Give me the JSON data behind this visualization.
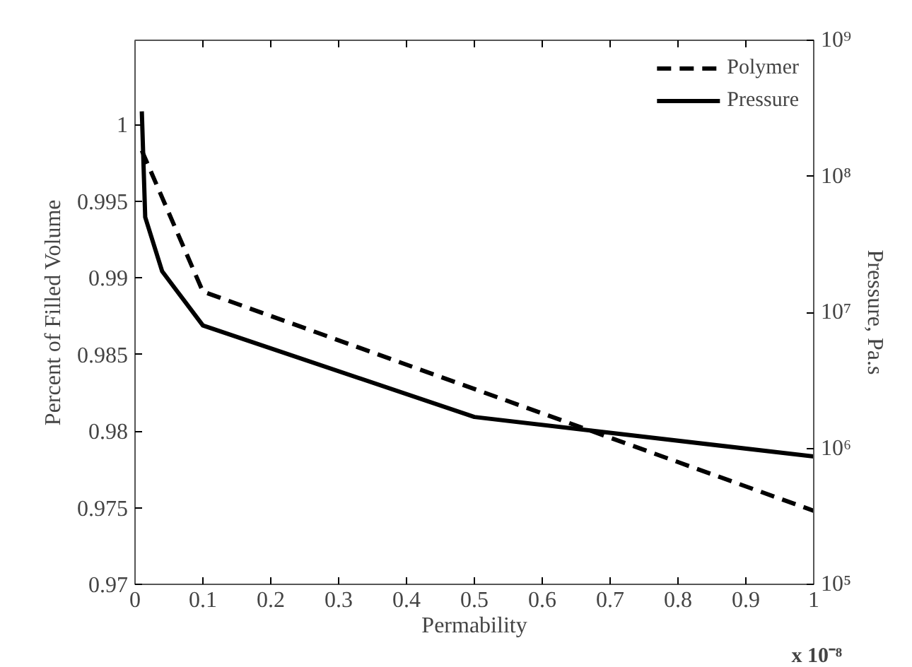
{
  "chart_data": {
    "type": "line",
    "xlabel": "Permability",
    "ylabel": "Percent of Filled Volume",
    "y2label": "Pressure, Pa.s",
    "annotations": [
      "x 10⁻⁸"
    ],
    "xlim": [
      0,
      1
    ],
    "xticks": [
      0,
      0.1,
      0.2,
      0.3,
      0.4,
      0.5,
      0.6,
      0.7,
      0.8,
      0.9,
      1
    ],
    "ylim": [
      0.97,
      1.0055
    ],
    "yticks": [
      0.97,
      0.975,
      0.98,
      0.985,
      0.99,
      0.995,
      1
    ],
    "y2lim": [
      100000,
      1000000000
    ],
    "log": "y2",
    "y2ticks": [
      {
        "value": 100000,
        "label": "10⁵"
      },
      {
        "value": 1000000,
        "label": "10⁶"
      },
      {
        "value": 10000000,
        "label": "10⁷"
      },
      {
        "value": 100000000,
        "label": "10⁸"
      },
      {
        "value": 1000000000,
        "label": "10⁹"
      }
    ],
    "grid": false,
    "legend": "top right",
    "series": [
      {
        "name": "Polymer",
        "color": "#000000",
        "line_style": "dashed",
        "x": [
          0.01,
          0.1,
          1
        ],
        "values": [
          0.9983,
          0.9891,
          0.9748
        ]
      },
      {
        "name": "Pressure",
        "color": "#000000",
        "line_style": "solid",
        "axis": "y2",
        "x": [
          0.01,
          0.015,
          0.04,
          0.1,
          0.5,
          1
        ],
        "values": [
          300000000,
          50000000,
          20000000,
          8000000,
          1700000,
          870000
        ]
      }
    ]
  }
}
